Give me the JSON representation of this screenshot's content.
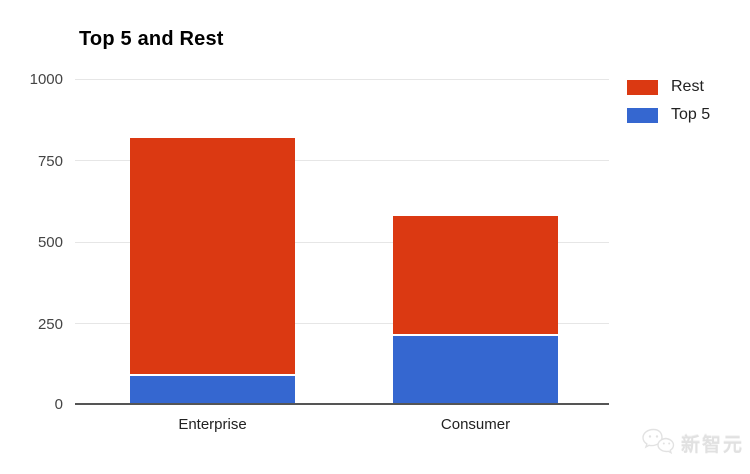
{
  "chart_data": {
    "type": "bar",
    "stacked": true,
    "title": "Top 5 and Rest",
    "categories": [
      "Enterprise",
      "Consumer"
    ],
    "series": [
      {
        "name": "Rest",
        "color": "#DB3912",
        "values": [
          735,
          370
        ]
      },
      {
        "name": "Top 5",
        "color": "#3567D0",
        "values": [
          85,
          210
        ]
      }
    ],
    "totals": [
      820,
      580
    ],
    "xlabel": "",
    "ylabel": "",
    "ylim": [
      0,
      1000
    ],
    "yticks": [
      0,
      250,
      500,
      750,
      1000
    ],
    "grid": true,
    "legend_position": "right"
  },
  "axis": {
    "y_tick_labels_top_to_bottom": [
      "1000",
      "750",
      "500",
      "250",
      "0"
    ],
    "gridline_color": "#E6E6E6",
    "baseline_color": "#555555"
  },
  "legend": {
    "items": [
      {
        "label": "Rest"
      },
      {
        "label": "Top 5"
      }
    ]
  },
  "watermark": {
    "text": "新智元",
    "icon": "wechat-logo"
  }
}
